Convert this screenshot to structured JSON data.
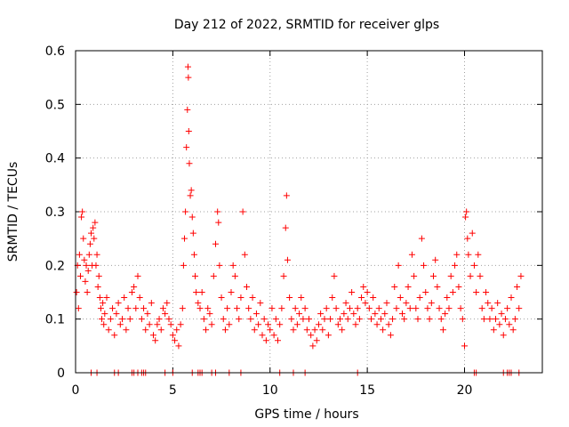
{
  "chart_data": {
    "type": "scatter",
    "title": "Day 212 of 2022, SRMTID for receiver glps",
    "xlabel": "GPS time / hours",
    "ylabel": "SRMTID / TECUs",
    "xlim": [
      0,
      24
    ],
    "ylim": [
      0,
      0.6
    ],
    "x_ticks": [
      0,
      5,
      10,
      15,
      20
    ],
    "x_tick_labels": [
      "0",
      "5",
      "10",
      "15",
      "20"
    ],
    "y_ticks": [
      0,
      0.1,
      0.2,
      0.3,
      0.4,
      0.5,
      0.6
    ],
    "y_tick_labels": [
      "0",
      "0.1",
      "0.2",
      "0.3",
      "0.4",
      "0.5",
      "0.6"
    ],
    "grid": true,
    "marker": "+",
    "color": "#ff0000",
    "series": [
      {
        "name": "SRMTID",
        "points": [
          [
            0.05,
            0.15
          ],
          [
            0.1,
            0.2
          ],
          [
            0.15,
            0.12
          ],
          [
            0.2,
            0.22
          ],
          [
            0.25,
            0.18
          ],
          [
            0.3,
            0.29
          ],
          [
            0.35,
            0.3
          ],
          [
            0.4,
            0.25
          ],
          [
            0.45,
            0.21
          ],
          [
            0.5,
            0.17
          ],
          [
            0.55,
            0.2
          ],
          [
            0.6,
            0.15
          ],
          [
            0.65,
            0.19
          ],
          [
            0.7,
            0.22
          ],
          [
            0.75,
            0.24
          ],
          [
            0.8,
            0.26
          ],
          [
            0.85,
            0.2
          ],
          [
            0.9,
            0.27
          ],
          [
            0.95,
            0.25
          ],
          [
            1.0,
            0.28
          ],
          [
            1.05,
            0.2
          ],
          [
            1.1,
            0.22
          ],
          [
            1.15,
            0.16
          ],
          [
            1.2,
            0.18
          ],
          [
            1.25,
            0.14
          ],
          [
            1.3,
            0.12
          ],
          [
            1.35,
            0.1
          ],
          [
            1.4,
            0.13
          ],
          [
            1.45,
            0.09
          ],
          [
            1.5,
            0.11
          ],
          [
            1.6,
            0.14
          ],
          [
            1.7,
            0.08
          ],
          [
            1.8,
            0.1
          ],
          [
            1.9,
            0.12
          ],
          [
            2.0,
            0.07
          ],
          [
            2.1,
            0.11
          ],
          [
            2.2,
            0.13
          ],
          [
            2.3,
            0.09
          ],
          [
            2.4,
            0.1
          ],
          [
            2.5,
            0.14
          ],
          [
            2.6,
            0.08
          ],
          [
            2.7,
            0.12
          ],
          [
            2.8,
            0.1
          ],
          [
            2.9,
            0.15
          ],
          [
            3.0,
            0.16
          ],
          [
            3.1,
            0.12
          ],
          [
            3.2,
            0.18
          ],
          [
            3.3,
            0.14
          ],
          [
            3.4,
            0.1
          ],
          [
            3.5,
            0.12
          ],
          [
            3.6,
            0.08
          ],
          [
            3.7,
            0.11
          ],
          [
            3.8,
            0.09
          ],
          [
            3.9,
            0.13
          ],
          [
            4.0,
            0.07
          ],
          [
            4.1,
            0.06
          ],
          [
            4.2,
            0.09
          ],
          [
            4.3,
            0.1
          ],
          [
            4.4,
            0.08
          ],
          [
            4.5,
            0.12
          ],
          [
            4.6,
            0.11
          ],
          [
            4.7,
            0.13
          ],
          [
            4.8,
            0.1
          ],
          [
            4.9,
            0.09
          ],
          [
            5.0,
            0.07
          ],
          [
            5.1,
            0.06
          ],
          [
            5.2,
            0.08
          ],
          [
            5.3,
            0.05
          ],
          [
            5.4,
            0.09
          ],
          [
            5.5,
            0.12
          ],
          [
            5.55,
            0.2
          ],
          [
            5.6,
            0.25
          ],
          [
            5.65,
            0.3
          ],
          [
            5.7,
            0.42
          ],
          [
            5.75,
            0.49
          ],
          [
            5.78,
            0.57
          ],
          [
            5.8,
            0.55
          ],
          [
            5.82,
            0.45
          ],
          [
            5.85,
            0.39
          ],
          [
            5.9,
            0.33
          ],
          [
            5.95,
            0.34
          ],
          [
            6.0,
            0.29
          ],
          [
            6.05,
            0.26
          ],
          [
            6.1,
            0.22
          ],
          [
            6.15,
            0.18
          ],
          [
            6.2,
            0.15
          ],
          [
            6.3,
            0.13
          ],
          [
            6.4,
            0.12
          ],
          [
            6.5,
            0.15
          ],
          [
            6.6,
            0.1
          ],
          [
            6.7,
            0.08
          ],
          [
            6.8,
            0.12
          ],
          [
            6.9,
            0.11
          ],
          [
            7.0,
            0.09
          ],
          [
            7.1,
            0.18
          ],
          [
            7.2,
            0.24
          ],
          [
            7.3,
            0.3
          ],
          [
            7.35,
            0.28
          ],
          [
            7.4,
            0.2
          ],
          [
            7.5,
            0.14
          ],
          [
            7.6,
            0.1
          ],
          [
            7.7,
            0.08
          ],
          [
            7.8,
            0.12
          ],
          [
            7.9,
            0.09
          ],
          [
            8.0,
            0.15
          ],
          [
            8.1,
            0.2
          ],
          [
            8.2,
            0.18
          ],
          [
            8.3,
            0.12
          ],
          [
            8.4,
            0.1
          ],
          [
            8.5,
            0.14
          ],
          [
            8.6,
            0.3
          ],
          [
            8.7,
            0.22
          ],
          [
            8.8,
            0.16
          ],
          [
            8.9,
            0.12
          ],
          [
            9.0,
            0.1
          ],
          [
            9.1,
            0.14
          ],
          [
            9.2,
            0.08
          ],
          [
            9.3,
            0.11
          ],
          [
            9.4,
            0.09
          ],
          [
            9.5,
            0.13
          ],
          [
            9.6,
            0.07
          ],
          [
            9.7,
            0.1
          ],
          [
            9.8,
            0.06
          ],
          [
            9.9,
            0.09
          ],
          [
            10.0,
            0.08
          ],
          [
            10.1,
            0.12
          ],
          [
            10.2,
            0.07
          ],
          [
            10.3,
            0.1
          ],
          [
            10.4,
            0.06
          ],
          [
            10.5,
            0.09
          ],
          [
            10.6,
            0.12
          ],
          [
            10.7,
            0.18
          ],
          [
            10.8,
            0.27
          ],
          [
            10.85,
            0.33
          ],
          [
            10.9,
            0.21
          ],
          [
            11.0,
            0.14
          ],
          [
            11.1,
            0.1
          ],
          [
            11.2,
            0.08
          ],
          [
            11.3,
            0.12
          ],
          [
            11.4,
            0.09
          ],
          [
            11.5,
            0.11
          ],
          [
            11.6,
            0.14
          ],
          [
            11.7,
            0.1
          ],
          [
            11.8,
            0.12
          ],
          [
            11.9,
            0.08
          ],
          [
            12.0,
            0.1
          ],
          [
            12.1,
            0.07
          ],
          [
            12.2,
            0.05
          ],
          [
            12.3,
            0.08
          ],
          [
            12.4,
            0.06
          ],
          [
            12.5,
            0.09
          ],
          [
            12.6,
            0.11
          ],
          [
            12.7,
            0.08
          ],
          [
            12.8,
            0.1
          ],
          [
            12.9,
            0.12
          ],
          [
            13.0,
            0.07
          ],
          [
            13.1,
            0.1
          ],
          [
            13.2,
            0.14
          ],
          [
            13.3,
            0.18
          ],
          [
            13.4,
            0.12
          ],
          [
            13.5,
            0.09
          ],
          [
            13.6,
            0.1
          ],
          [
            13.7,
            0.08
          ],
          [
            13.8,
            0.11
          ],
          [
            13.9,
            0.13
          ],
          [
            14.0,
            0.1
          ],
          [
            14.1,
            0.12
          ],
          [
            14.2,
            0.15
          ],
          [
            14.3,
            0.11
          ],
          [
            14.4,
            0.09
          ],
          [
            14.5,
            0.12
          ],
          [
            14.6,
            0.1
          ],
          [
            14.7,
            0.14
          ],
          [
            14.8,
            0.16
          ],
          [
            14.9,
            0.13
          ],
          [
            15.0,
            0.15
          ],
          [
            15.1,
            0.12
          ],
          [
            15.2,
            0.1
          ],
          [
            15.3,
            0.14
          ],
          [
            15.4,
            0.11
          ],
          [
            15.5,
            0.09
          ],
          [
            15.6,
            0.12
          ],
          [
            15.7,
            0.1
          ],
          [
            15.8,
            0.08
          ],
          [
            15.9,
            0.11
          ],
          [
            16.0,
            0.13
          ],
          [
            16.1,
            0.09
          ],
          [
            16.2,
            0.07
          ],
          [
            16.3,
            0.1
          ],
          [
            16.4,
            0.16
          ],
          [
            16.5,
            0.12
          ],
          [
            16.6,
            0.2
          ],
          [
            16.7,
            0.14
          ],
          [
            16.8,
            0.11
          ],
          [
            16.9,
            0.1
          ],
          [
            17.0,
            0.13
          ],
          [
            17.1,
            0.16
          ],
          [
            17.2,
            0.12
          ],
          [
            17.3,
            0.22
          ],
          [
            17.4,
            0.18
          ],
          [
            17.5,
            0.12
          ],
          [
            17.6,
            0.1
          ],
          [
            17.7,
            0.14
          ],
          [
            17.8,
            0.25
          ],
          [
            17.9,
            0.2
          ],
          [
            18.0,
            0.15
          ],
          [
            18.1,
            0.12
          ],
          [
            18.2,
            0.1
          ],
          [
            18.3,
            0.13
          ],
          [
            18.4,
            0.18
          ],
          [
            18.5,
            0.21
          ],
          [
            18.6,
            0.16
          ],
          [
            18.7,
            0.12
          ],
          [
            18.8,
            0.1
          ],
          [
            18.9,
            0.08
          ],
          [
            19.0,
            0.11
          ],
          [
            19.1,
            0.14
          ],
          [
            19.2,
            0.12
          ],
          [
            19.3,
            0.18
          ],
          [
            19.4,
            0.15
          ],
          [
            19.5,
            0.2
          ],
          [
            19.6,
            0.22
          ],
          [
            19.7,
            0.16
          ],
          [
            19.8,
            0.12
          ],
          [
            19.9,
            0.1
          ],
          [
            20.0,
            0.05
          ],
          [
            20.05,
            0.29
          ],
          [
            20.1,
            0.3
          ],
          [
            20.15,
            0.25
          ],
          [
            20.2,
            0.22
          ],
          [
            20.3,
            0.18
          ],
          [
            20.4,
            0.26
          ],
          [
            20.5,
            0.2
          ],
          [
            20.6,
            0.15
          ],
          [
            20.7,
            0.22
          ],
          [
            20.8,
            0.18
          ],
          [
            20.9,
            0.12
          ],
          [
            21.0,
            0.1
          ],
          [
            21.1,
            0.15
          ],
          [
            21.2,
            0.13
          ],
          [
            21.3,
            0.1
          ],
          [
            21.4,
            0.12
          ],
          [
            21.5,
            0.08
          ],
          [
            21.6,
            0.1
          ],
          [
            21.7,
            0.13
          ],
          [
            21.8,
            0.09
          ],
          [
            21.9,
            0.11
          ],
          [
            22.0,
            0.07
          ],
          [
            22.1,
            0.1
          ],
          [
            22.2,
            0.12
          ],
          [
            22.3,
            0.09
          ],
          [
            22.4,
            0.14
          ],
          [
            22.5,
            0.08
          ],
          [
            22.6,
            0.1
          ],
          [
            22.7,
            0.16
          ],
          [
            22.8,
            0.12
          ],
          [
            22.9,
            0.18
          ]
        ]
      }
    ],
    "zero_points_x": [
      0.8,
      1.1,
      2.0,
      2.2,
      2.9,
      3.0,
      3.2,
      3.4,
      3.5,
      3.6,
      4.6,
      5.0,
      6.0,
      6.3,
      6.4,
      6.5,
      7.0,
      7.2,
      7.9,
      8.5,
      10.5,
      11.2,
      11.8,
      14.5,
      20.5,
      20.6,
      22.0,
      22.2,
      22.3,
      22.4,
      22.8
    ]
  }
}
